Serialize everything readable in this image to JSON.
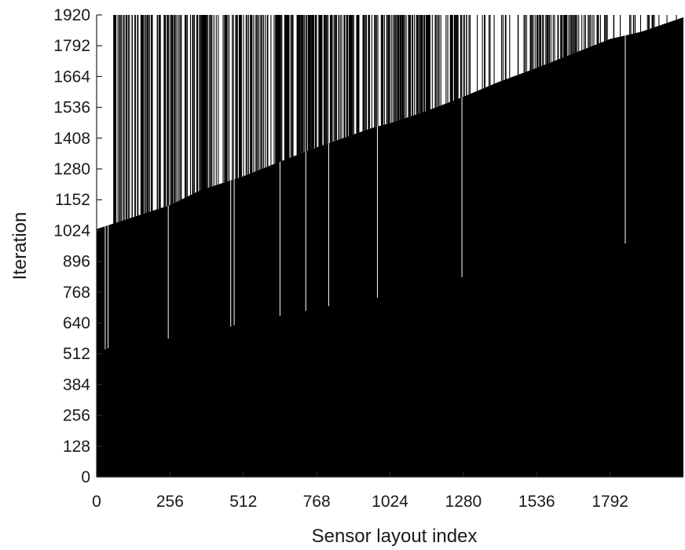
{
  "chart_data": {
    "type": "bar",
    "description_free": true,
    "xlabel": "Sensor layout index",
    "ylabel": "Iteration",
    "xlim": [
      0,
      2048
    ],
    "ylim": [
      0,
      1920
    ],
    "x_ticks": [
      0,
      256,
      512,
      768,
      1024,
      1280,
      1536,
      1792
    ],
    "y_ticks": [
      0,
      128,
      256,
      384,
      512,
      640,
      768,
      896,
      1024,
      1152,
      1280,
      1408,
      1536,
      1664,
      1792,
      1920
    ],
    "bar_color": "#000000",
    "background_color": "#ffffff",
    "grid": false,
    "envelope": {
      "x": [
        0,
        256,
        360,
        512,
        640,
        768,
        960,
        1024,
        1150,
        1280,
        1400,
        1536,
        1664,
        1792,
        1900,
        2048
      ],
      "y": [
        1030,
        1130,
        1190,
        1250,
        1310,
        1370,
        1450,
        1470,
        1520,
        1580,
        1640,
        1700,
        1760,
        1820,
        1850,
        1910
      ]
    },
    "low_outliers": [
      {
        "x": 30,
        "y": 530
      },
      {
        "x": 40,
        "y": 535
      },
      {
        "x": 250,
        "y": 575
      },
      {
        "x": 468,
        "y": 625
      },
      {
        "x": 480,
        "y": 630
      },
      {
        "x": 640,
        "y": 670
      },
      {
        "x": 730,
        "y": 690
      },
      {
        "x": 810,
        "y": 710
      },
      {
        "x": 980,
        "y": 745
      },
      {
        "x": 1275,
        "y": 830
      },
      {
        "x": 1845,
        "y": 970
      }
    ],
    "full_height_bands": [
      {
        "x_start": 370,
        "x_end": 385
      },
      {
        "x_start": 625,
        "x_end": 640
      },
      {
        "x_start": 655,
        "x_end": 670
      },
      {
        "x_start": 1150,
        "x_end": 1165
      }
    ]
  }
}
